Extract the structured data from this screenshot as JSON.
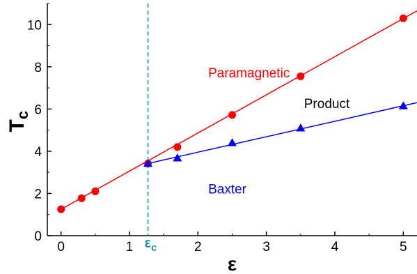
{
  "chart_data": {
    "type": "line",
    "title": "",
    "xlabel": "ε",
    "ylabel_main": "T",
    "ylabel_sub": "c",
    "xlim": [
      -0.2,
      5.2
    ],
    "ylim": [
      0,
      11
    ],
    "x_ticks": [
      0,
      1,
      2,
      3,
      4,
      5
    ],
    "y_ticks": [
      0,
      2,
      4,
      6,
      8,
      10
    ],
    "grid": false,
    "series": [
      {
        "marker": "circle",
        "color": "#ff0000",
        "points": [
          [
            0,
            1.25
          ],
          [
            0.3,
            1.77
          ],
          [
            0.5,
            2.1
          ],
          [
            1.27,
            3.42
          ],
          [
            1.7,
            4.2
          ],
          [
            2.5,
            5.72
          ],
          [
            3.5,
            7.55
          ],
          [
            5.0,
            10.3
          ]
        ],
        "line": [
          [
            0,
            1.25
          ],
          [
            5.2,
            10.65
          ]
        ]
      },
      {
        "marker": "triangle",
        "color": "#0000ff",
        "points": [
          [
            1.27,
            3.42
          ],
          [
            1.7,
            3.68
          ],
          [
            2.5,
            4.4
          ],
          [
            3.5,
            5.1
          ],
          [
            5.0,
            6.15
          ]
        ],
        "line": [
          [
            1.27,
            3.42
          ],
          [
            5.2,
            6.3
          ]
        ]
      }
    ],
    "vline": {
      "x": 1.27,
      "color": "#1a9a96",
      "label_main": "ε",
      "label_sub": "c"
    },
    "annotations": [
      {
        "text": "Paramagnetic",
        "x": 2.15,
        "y": 7.5,
        "color": "#ff0000"
      },
      {
        "text": "Product",
        "x": 3.55,
        "y": 6.05,
        "color": "#000000"
      },
      {
        "text": "Baxter",
        "x": 2.15,
        "y": 2.0,
        "color": "#0000ff"
      }
    ]
  }
}
